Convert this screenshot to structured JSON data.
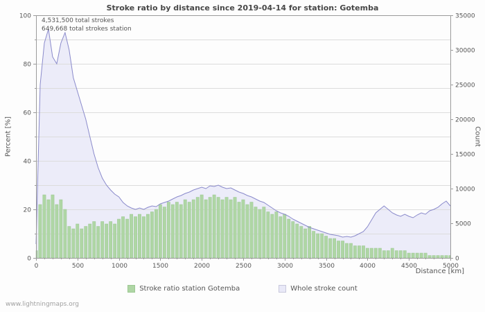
{
  "chart_data": {
    "type": "combo",
    "title": "Stroke ratio by distance since 2019-04-14 for station: Gotemba",
    "annotations": [
      "4,531,500 total strokes",
      "649,668 total strokes station"
    ],
    "xlabel": "Distance  [km]",
    "ylabel_left": "Percent  [%]",
    "ylabel_right": "Count",
    "watermark": "www.lightningmaps.org",
    "legend_position": "bottom",
    "grid": "horizontal-minor",
    "axes": {
      "x": {
        "min": 0,
        "max": 5000,
        "major": 500,
        "minor": 100
      },
      "left": {
        "min": 0,
        "max": 100,
        "major": 20,
        "minor": 10
      },
      "right": {
        "min": 0,
        "max": 35000,
        "major": 5000
      }
    },
    "x": [
      0,
      50,
      100,
      150,
      200,
      250,
      300,
      350,
      400,
      450,
      500,
      550,
      600,
      650,
      700,
      750,
      800,
      850,
      900,
      950,
      1000,
      1050,
      1100,
      1150,
      1200,
      1250,
      1300,
      1350,
      1400,
      1450,
      1500,
      1550,
      1600,
      1650,
      1700,
      1750,
      1800,
      1850,
      1900,
      1950,
      2000,
      2050,
      2100,
      2150,
      2200,
      2250,
      2300,
      2350,
      2400,
      2450,
      2500,
      2550,
      2600,
      2650,
      2700,
      2750,
      2800,
      2850,
      2900,
      2950,
      3000,
      3050,
      3100,
      3150,
      3200,
      3250,
      3300,
      3350,
      3400,
      3450,
      3500,
      3550,
      3600,
      3650,
      3700,
      3750,
      3800,
      3850,
      3900,
      3950,
      4000,
      4050,
      4100,
      4150,
      4200,
      4250,
      4300,
      4350,
      4400,
      4450,
      4500,
      4550,
      4600,
      4650,
      4700,
      4750,
      4800,
      4850,
      4900,
      4950,
      5000
    ],
    "series": [
      {
        "name": "Stroke ratio station Gotemba",
        "type": "bar",
        "axis": "left",
        "unit": "%",
        "values": [
          3,
          22,
          26,
          24,
          26,
          22,
          24,
          20,
          13,
          12,
          14,
          12,
          13,
          14,
          15,
          13,
          15,
          14,
          15,
          14,
          16,
          17,
          16,
          18,
          17,
          18,
          17,
          18,
          19,
          20,
          22,
          21,
          23,
          22,
          23,
          22,
          24,
          23,
          24,
          25,
          26,
          24,
          25,
          26,
          25,
          24,
          25,
          24,
          25,
          23,
          24,
          22,
          23,
          21,
          20,
          21,
          19,
          18,
          19,
          17,
          18,
          16,
          15,
          14,
          13,
          12,
          13,
          11,
          10,
          10,
          9,
          8,
          8,
          7,
          7,
          6,
          6,
          5,
          5,
          5,
          4,
          4,
          4,
          4,
          3,
          3,
          4,
          3,
          3,
          3,
          2,
          2,
          2,
          2,
          2,
          1,
          1,
          1,
          1,
          1,
          1
        ]
      },
      {
        "name": "Whole stroke count",
        "type": "area-line",
        "axis": "right",
        "unit": "strokes",
        "values": [
          2000,
          25000,
          31000,
          33000,
          29000,
          28000,
          31000,
          32500,
          30000,
          26000,
          24000,
          22000,
          20000,
          17500,
          15000,
          13000,
          11500,
          10500,
          9800,
          9200,
          8800,
          8000,
          7500,
          7200,
          7000,
          7200,
          7000,
          7300,
          7500,
          7400,
          7800,
          8000,
          8200,
          8500,
          8800,
          9000,
          9300,
          9500,
          9800,
          10000,
          10200,
          10000,
          10400,
          10300,
          10500,
          10200,
          10000,
          10100,
          9800,
          9500,
          9300,
          9000,
          8800,
          8500,
          8200,
          8000,
          7600,
          7200,
          6800,
          6500,
          6300,
          6000,
          5600,
          5300,
          5000,
          4700,
          4400,
          4200,
          4000,
          3800,
          3600,
          3400,
          3300,
          3200,
          3000,
          3100,
          3000,
          3200,
          3500,
          3800,
          4500,
          5500,
          6500,
          7000,
          7500,
          7000,
          6500,
          6200,
          6000,
          6300,
          6000,
          5800,
          6200,
          6500,
          6300,
          6800,
          7000,
          7300,
          7800,
          8200,
          7500
        ]
      }
    ],
    "colors": {
      "bar_fill": "#afd6a5",
      "bar_edge": "#9cc892",
      "area_fill": "#e9e9f8",
      "line": "#8a8acb",
      "grid": "#dcdcdc",
      "axis": "#9a9a9a",
      "text": "#555555",
      "title": "#474747",
      "watermark": "#a0a0a0"
    }
  }
}
